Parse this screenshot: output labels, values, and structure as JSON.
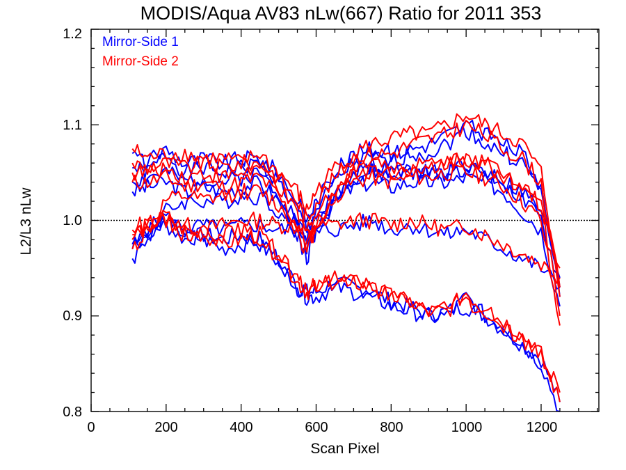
{
  "chart_data": {
    "type": "line",
    "title": "MODIS/Aqua AV83 nLw(667) Ratio for 2011 353",
    "xlabel": "Scan Pixel",
    "ylabel": "L2/L3 nLw",
    "xlim": [
      0,
      1354
    ],
    "ylim": [
      0.8,
      1.2
    ],
    "x_ticks": [
      "0",
      "200",
      "400",
      "600",
      "800",
      "1000",
      "1200"
    ],
    "y_ticks": [
      "0.8",
      "0.9",
      "1.0",
      "1.1",
      "1.2"
    ],
    "reference_line": {
      "y": 1.0,
      "style": "dotted"
    },
    "legend": {
      "placement": "top-left",
      "entries": [
        "Mirror-Side 1",
        "Mirror-Side 2"
      ]
    },
    "colors": {
      "Mirror-Side 1": "#0000ff",
      "Mirror-Side 2": "#ff0000"
    },
    "x": [
      110,
      150,
      200,
      250,
      300,
      350,
      400,
      450,
      500,
      550,
      575,
      600,
      650,
      700,
      750,
      800,
      850,
      900,
      950,
      1000,
      1050,
      1100,
      1150,
      1200,
      1250
    ],
    "series": [
      {
        "name": "Mirror-Side 1",
        "values": [
          1.07,
          1.06,
          1.075,
          1.06,
          1.065,
          1.06,
          1.065,
          1.065,
          1.05,
          1.02,
          1.0,
          1.02,
          1.05,
          1.07,
          1.075,
          1.07,
          1.075,
          1.08,
          1.09,
          1.1,
          1.09,
          1.08,
          1.07,
          1.04,
          0.92
        ]
      },
      {
        "name": "Mirror-Side 1",
        "values": [
          1.055,
          1.05,
          1.07,
          1.05,
          1.055,
          1.05,
          1.055,
          1.06,
          1.04,
          1.01,
          0.99,
          1.01,
          1.04,
          1.06,
          1.065,
          1.06,
          1.07,
          1.07,
          1.08,
          1.095,
          1.08,
          1.07,
          1.06,
          1.03,
          0.93
        ]
      },
      {
        "name": "Mirror-Side 1",
        "values": [
          1.04,
          1.045,
          1.05,
          1.04,
          1.045,
          1.04,
          1.045,
          1.05,
          1.03,
          1.0,
          0.98,
          1.0,
          1.03,
          1.045,
          1.05,
          1.045,
          1.05,
          1.05,
          1.05,
          1.055,
          1.05,
          1.04,
          1.02,
          1.0,
          0.93
        ]
      },
      {
        "name": "Mirror-Side 1",
        "values": [
          1.03,
          1.035,
          1.04,
          1.03,
          1.035,
          1.03,
          1.035,
          1.04,
          1.02,
          0.995,
          0.97,
          0.99,
          1.02,
          1.035,
          1.04,
          1.035,
          1.04,
          1.04,
          1.04,
          1.045,
          1.04,
          1.03,
          1.01,
          0.99,
          0.91
        ]
      },
      {
        "name": "Mirror-Side 1",
        "values": [
          0.96,
          0.98,
          1.01,
          1.02,
          1.02,
          1.02,
          1.025,
          1.025,
          1.01,
          0.985,
          0.96,
          0.99,
          1.02,
          1.05,
          1.06,
          1.05,
          1.05,
          1.05,
          1.05,
          1.06,
          1.05,
          1.04,
          1.03,
          1.01,
          0.94
        ]
      },
      {
        "name": "Mirror-Side 1",
        "values": [
          0.97,
          0.99,
          1.005,
          0.99,
          0.995,
          0.99,
          0.995,
          0.995,
          0.99,
          0.99,
          0.985,
          0.99,
          0.99,
          0.995,
          1.0,
          0.99,
          0.995,
          0.99,
          0.985,
          0.99,
          0.98,
          0.97,
          0.96,
          0.95,
          0.93
        ]
      },
      {
        "name": "Mirror-Side 1",
        "values": [
          0.975,
          0.985,
          1.0,
          0.985,
          0.98,
          0.97,
          0.975,
          0.98,
          0.96,
          0.93,
          0.92,
          0.92,
          0.93,
          0.925,
          0.92,
          0.91,
          0.905,
          0.9,
          0.9,
          0.92,
          0.9,
          0.89,
          0.87,
          0.85,
          0.8
        ]
      },
      {
        "name": "Mirror-Side 1",
        "values": [
          0.98,
          0.99,
          0.995,
          0.98,
          0.985,
          0.98,
          0.985,
          0.975,
          0.955,
          0.93,
          0.925,
          0.925,
          0.935,
          0.93,
          0.925,
          0.915,
          0.91,
          0.9,
          0.905,
          0.91,
          0.9,
          0.885,
          0.87,
          0.855,
          0.81
        ]
      },
      {
        "name": "Mirror-Side 2",
        "values": [
          1.075,
          1.065,
          1.07,
          1.07,
          1.065,
          1.065,
          1.06,
          1.07,
          1.05,
          1.03,
          1.01,
          1.03,
          1.055,
          1.07,
          1.08,
          1.085,
          1.09,
          1.09,
          1.1,
          1.11,
          1.1,
          1.09,
          1.08,
          1.05,
          0.93
        ]
      },
      {
        "name": "Mirror-Side 2",
        "values": [
          1.06,
          1.055,
          1.06,
          1.055,
          1.06,
          1.055,
          1.06,
          1.06,
          1.045,
          1.02,
          1.0,
          1.02,
          1.045,
          1.065,
          1.07,
          1.07,
          1.08,
          1.085,
          1.09,
          1.1,
          1.09,
          1.075,
          1.065,
          1.04,
          0.92
        ]
      },
      {
        "name": "Mirror-Side 2",
        "values": [
          1.05,
          1.05,
          1.055,
          1.045,
          1.05,
          1.045,
          1.05,
          1.055,
          1.035,
          1.005,
          0.985,
          1.005,
          1.035,
          1.05,
          1.055,
          1.05,
          1.055,
          1.06,
          1.06,
          1.065,
          1.06,
          1.05,
          1.04,
          1.02,
          0.9
        ]
      },
      {
        "name": "Mirror-Side 2",
        "values": [
          1.04,
          1.04,
          1.045,
          1.035,
          1.04,
          1.035,
          1.04,
          1.045,
          1.025,
          0.995,
          0.975,
          0.995,
          1.025,
          1.04,
          1.045,
          1.04,
          1.045,
          1.045,
          1.05,
          1.05,
          1.045,
          1.035,
          1.02,
          1.0,
          0.89
        ]
      },
      {
        "name": "Mirror-Side 2",
        "values": [
          0.97,
          0.99,
          1.02,
          1.025,
          1.02,
          1.025,
          1.03,
          1.03,
          1.015,
          0.99,
          0.965,
          0.995,
          1.025,
          1.055,
          1.065,
          1.055,
          1.055,
          1.055,
          1.06,
          1.065,
          1.06,
          1.045,
          1.035,
          1.015,
          0.95
        ]
      },
      {
        "name": "Mirror-Side 2",
        "values": [
          0.98,
          0.995,
          1.0,
          0.995,
          0.99,
          0.995,
          1.0,
          1.0,
          0.995,
          0.995,
          0.99,
          0.995,
          0.995,
          1.0,
          1.0,
          0.995,
          1.0,
          0.995,
          0.99,
          0.995,
          0.985,
          0.975,
          0.965,
          0.955,
          0.94
        ]
      },
      {
        "name": "Mirror-Side 2",
        "values": [
          0.985,
          0.995,
          1.005,
          0.99,
          0.985,
          0.975,
          0.98,
          0.985,
          0.965,
          0.935,
          0.925,
          0.93,
          0.935,
          0.935,
          0.93,
          0.92,
          0.915,
          0.905,
          0.905,
          0.925,
          0.905,
          0.895,
          0.88,
          0.86,
          0.81
        ]
      },
      {
        "name": "Mirror-Side 2",
        "values": [
          0.99,
          1.0,
          1.0,
          0.985,
          0.99,
          0.985,
          0.99,
          0.98,
          0.96,
          0.935,
          0.93,
          0.93,
          0.94,
          0.94,
          0.93,
          0.92,
          0.915,
          0.905,
          0.91,
          0.915,
          0.905,
          0.89,
          0.875,
          0.86,
          0.82
        ]
      }
    ]
  }
}
